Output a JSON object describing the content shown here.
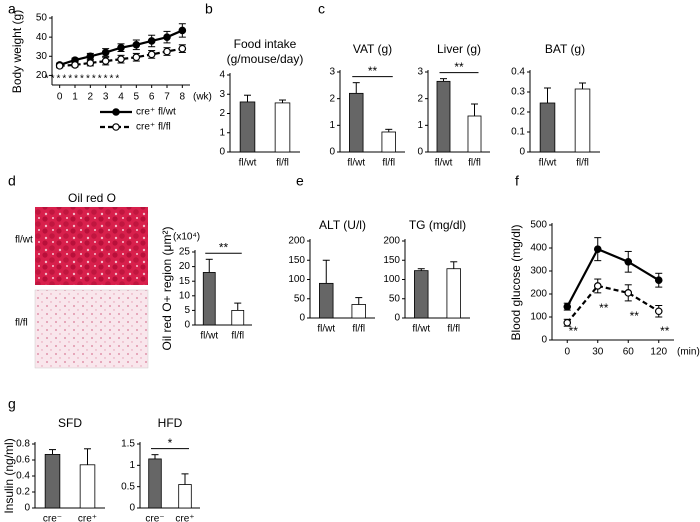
{
  "chart_data": [
    {
      "type": "line",
      "panel_label": "a",
      "ylabel": "Body weight (g)",
      "x": [
        0,
        1,
        2,
        3,
        4,
        5,
        6,
        7,
        8
      ],
      "xunit": "(wk)",
      "xlim": [
        -0.5,
        8.5
      ],
      "ylim": [
        15,
        50
      ],
      "yticks": [
        20,
        30,
        40,
        50
      ],
      "annotation": "*************",
      "series": [
        {
          "name": "cre⁺ fl/wt",
          "color": "#000000",
          "dash": false,
          "marker": "filled",
          "values": [
            25.5,
            28,
            30,
            32,
            34.5,
            36,
            38,
            40,
            43.5
          ],
          "errors": [
            1,
            1,
            1.5,
            2,
            2,
            2.5,
            3,
            3,
            3.5
          ]
        },
        {
          "name": "cre⁺ fl/fl",
          "color": "#000000",
          "dash": true,
          "marker": "open",
          "values": [
            25,
            25.5,
            26.5,
            27.5,
            28.5,
            29.5,
            31,
            32.5,
            34
          ],
          "errors": [
            1,
            1,
            1.5,
            2,
            2,
            2,
            2,
            2,
            2
          ]
        }
      ]
    },
    {
      "type": "bar",
      "panel_label": "b",
      "title": "Food intake",
      "subtitle": "(g/mouse/day)",
      "categories": [
        "fl/wt",
        "fl/fl"
      ],
      "values": [
        2.6,
        2.55
      ],
      "errors": [
        0.35,
        0.15
      ],
      "colors": [
        "#666666",
        "#ffffff"
      ],
      "ylim": [
        0,
        4
      ],
      "yticks": [
        0,
        1,
        2,
        3,
        4
      ]
    },
    {
      "type": "bar",
      "panel_label": "c",
      "title": "VAT (g)",
      "categories": [
        "fl/wt",
        "fl/fl"
      ],
      "values": [
        2.2,
        0.75
      ],
      "errors": [
        0.4,
        0.1
      ],
      "colors": [
        "#666666",
        "#ffffff"
      ],
      "ylim": [
        0,
        3
      ],
      "yticks": [
        0,
        1,
        2,
        3
      ],
      "sig": "**"
    },
    {
      "type": "bar",
      "title": "Liver (g)",
      "categories": [
        "fl/wt",
        "fl/fl"
      ],
      "values": [
        2.65,
        1.35
      ],
      "errors": [
        0.1,
        0.45
      ],
      "colors": [
        "#666666",
        "#ffffff"
      ],
      "ylim": [
        0,
        3
      ],
      "yticks": [
        0,
        1,
        2,
        3
      ],
      "sig": "**"
    },
    {
      "type": "bar",
      "title": "BAT (g)",
      "categories": [
        "fl/wt",
        "fl/fl"
      ],
      "values": [
        0.245,
        0.315
      ],
      "errors": [
        0.075,
        0.03
      ],
      "colors": [
        "#666666",
        "#ffffff"
      ],
      "ylim": [
        0,
        0.4
      ],
      "yticks": [
        0,
        0.1,
        0.2,
        0.3,
        0.4
      ]
    },
    {
      "type": "bar",
      "panel_label": "d",
      "image_title": "Oil red O",
      "image_rows": [
        "fl/wt",
        "fl/fl"
      ],
      "yunit": "(x10⁴)",
      "ylabel": "Oil red O+ region (μm²)",
      "categories": [
        "fl/wt",
        "fl/fl"
      ],
      "values": [
        18,
        5
      ],
      "errors": [
        4.5,
        2.5
      ],
      "colors": [
        "#666666",
        "#ffffff"
      ],
      "ylim": [
        0,
        25
      ],
      "yticks": [
        0,
        5,
        10,
        15,
        20,
        25
      ],
      "sig": "**"
    },
    {
      "type": "bar",
      "panel_label": "e",
      "title": "ALT (U/l)",
      "categories": [
        "fl/wt",
        "fl/fl"
      ],
      "values": [
        90,
        35
      ],
      "errors": [
        60,
        18
      ],
      "colors": [
        "#666666",
        "#ffffff"
      ],
      "ylim": [
        0,
        200
      ],
      "yticks": [
        0,
        50,
        100,
        150,
        200
      ]
    },
    {
      "type": "bar",
      "title": "TG (mg/dl)",
      "categories": [
        "fl/wt",
        "fl/fl"
      ],
      "values": [
        123,
        128
      ],
      "errors": [
        5,
        18
      ],
      "colors": [
        "#666666",
        "#ffffff"
      ],
      "ylim": [
        0,
        200
      ],
      "yticks": [
        0,
        50,
        100,
        150,
        200
      ]
    },
    {
      "type": "line",
      "panel_label": "f",
      "ylabel": "Blood glucose (mg/dl)",
      "categories": [
        "0",
        "30",
        "60",
        "120"
      ],
      "xunit": "(min)",
      "ylim": [
        0,
        500
      ],
      "yticks": [
        0,
        100,
        200,
        300,
        400,
        500
      ],
      "annotations": [
        "**",
        "**",
        "**",
        "**"
      ],
      "series": [
        {
          "name": "cre⁺ fl/wt",
          "color": "#000000",
          "dash": false,
          "marker": "filled",
          "values": [
            145,
            395,
            340,
            260
          ],
          "errors": [
            15,
            50,
            45,
            30
          ]
        },
        {
          "name": "cre⁺ fl/fl",
          "color": "#000000",
          "dash": true,
          "marker": "open",
          "values": [
            75,
            235,
            205,
            125
          ],
          "errors": [
            15,
            30,
            35,
            25
          ]
        }
      ]
    },
    {
      "type": "bar",
      "panel_label": "g",
      "title": "SFD",
      "ylabel": "Insulin (ng/ml)",
      "categories": [
        "cre⁻",
        "cre⁺"
      ],
      "values": [
        0.67,
        0.54
      ],
      "errors": [
        0.06,
        0.2
      ],
      "colors": [
        "#666666",
        "#ffffff"
      ],
      "ylim": [
        0,
        0.8
      ],
      "yticks": [
        0,
        0.2,
        0.4,
        0.6,
        0.8
      ]
    },
    {
      "type": "bar",
      "title": "HFD",
      "categories": [
        "cre⁻",
        "cre⁺"
      ],
      "values": [
        1.15,
        0.55
      ],
      "errors": [
        0.1,
        0.25
      ],
      "colors": [
        "#666666",
        "#ffffff"
      ],
      "ylim": [
        0,
        1.5
      ],
      "yticks": [
        0,
        0.5,
        1,
        1.5
      ],
      "sig": "*"
    }
  ]
}
